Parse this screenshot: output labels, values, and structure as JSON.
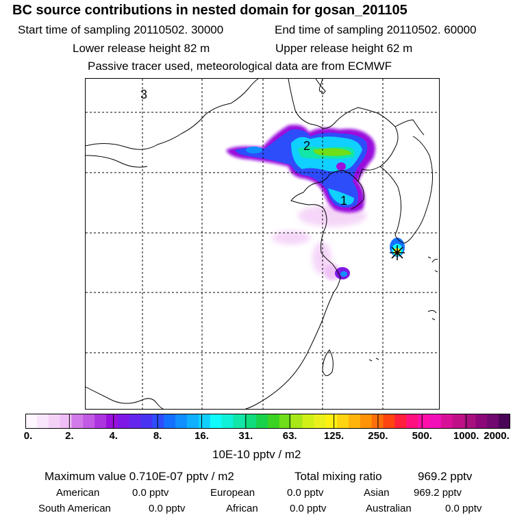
{
  "header": {
    "title": "BC  source contributions in nested domain for gosan_201105",
    "start_time": "Start time of sampling 20110502. 30000",
    "end_time": "End time of sampling 20110502. 60000",
    "lower_release": "Lower release height   82 m",
    "upper_release": "Upper release height   62 m",
    "tracer_note": "Passive tracer used, meteorological data are from ECMWF"
  },
  "map": {
    "labels": {
      "grid_3": "3",
      "source_2": "2",
      "source_1": "1"
    }
  },
  "colorbar": {
    "ticks": [
      "0.",
      "2.",
      "4.",
      "8.",
      "16.",
      "31.",
      "63.",
      "125.",
      "250.",
      "500.",
      "1000.",
      "2000."
    ],
    "colors": [
      "#fff6ff",
      "#fae6fc",
      "#f4d2f8",
      "#eebdf6",
      "#d27ae8",
      "#c15ae4",
      "#ad35e0",
      "#9a10dd",
      "#7e18e6",
      "#6426ec",
      "#4833f2",
      "#2e4dfa",
      "#1470ff",
      "#1090ff",
      "#10b0ff",
      "#10d0ff",
      "#10fafc",
      "#10f0d8",
      "#12e6a8",
      "#10dc7c",
      "#18d24a",
      "#3cd222",
      "#70de18",
      "#a8e818",
      "#d0f018",
      "#eaf01c",
      "#fff012",
      "#ffd410",
      "#ffb40c",
      "#ff9308",
      "#ff6e0a",
      "#ff4410",
      "#ff1e3c",
      "#ff1080",
      "#ff10a8",
      "#f210b8",
      "#d81098",
      "#c01088",
      "#a81080",
      "#8c0878",
      "#700870",
      "#4a0458"
    ],
    "unit": "10E-10 pptv / m2"
  },
  "stats": {
    "max_value": "Maximum value  0.710E-07 pptv / m2",
    "total_mixing": "Total mixing ratio",
    "total_value": "969.2 pptv",
    "american_label": "American",
    "american_value": "0.0 pptv",
    "european_label": "European",
    "european_value": "0.0 pptv",
    "asian_label": "Asian",
    "asian_value": "969.2 pptv",
    "south_american_label": "South American",
    "south_american_value": "0.0 pptv",
    "african_label": "African",
    "african_value": "0.0 pptv",
    "australian_label": "Australian",
    "australian_value": "0.0 pptv"
  }
}
